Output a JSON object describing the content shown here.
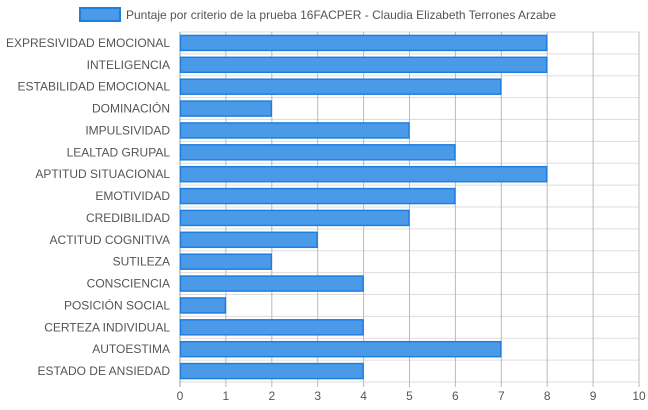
{
  "chart_data": {
    "type": "bar",
    "orientation": "horizontal",
    "legend": {
      "label": "Puntaje por criterio de la prueba 16FACPER - Claudia Elizabeth Terrones Arzabe",
      "placement": "top-center"
    },
    "series": [
      {
        "name": "Puntaje por criterio de la prueba 16FACPER - Claudia Elizabeth Terrones Arzabe",
        "values": [
          8,
          8,
          7,
          2,
          5,
          6,
          8,
          6,
          5,
          3,
          2,
          4,
          1,
          4,
          7,
          4
        ]
      }
    ],
    "categories": [
      "EXPRESIVIDAD EMOCIONAL",
      "INTELIGENCIA",
      "ESTABILIDAD EMOCIONAL",
      "DOMINACIÓN",
      "IMPULSIVIDAD",
      "LEALTAD GRUPAL",
      "APTITUD SITUACIONAL",
      "EMOTIVIDAD",
      "CREDIBILIDAD",
      "ACTITUD COGNITIVA",
      "SUTILEZA",
      "CONSCIENCIA",
      "POSICIÓN SOCIAL",
      "CERTEZA INDIVIDUAL",
      "AUTOESTIMA",
      "ESTADO DE ANSIEDAD"
    ],
    "xlim": [
      0,
      10
    ],
    "xticks": [
      "0",
      "1",
      "2",
      "3",
      "4",
      "5",
      "6",
      "7",
      "8",
      "9",
      "10"
    ],
    "grid": true,
    "colors": {
      "bar_fill": "#4a9ae8",
      "bar_stroke": "#1f7fe0",
      "grid": "#dddddd",
      "grid_major": "#bbbbbb",
      "text": "#555555"
    }
  }
}
